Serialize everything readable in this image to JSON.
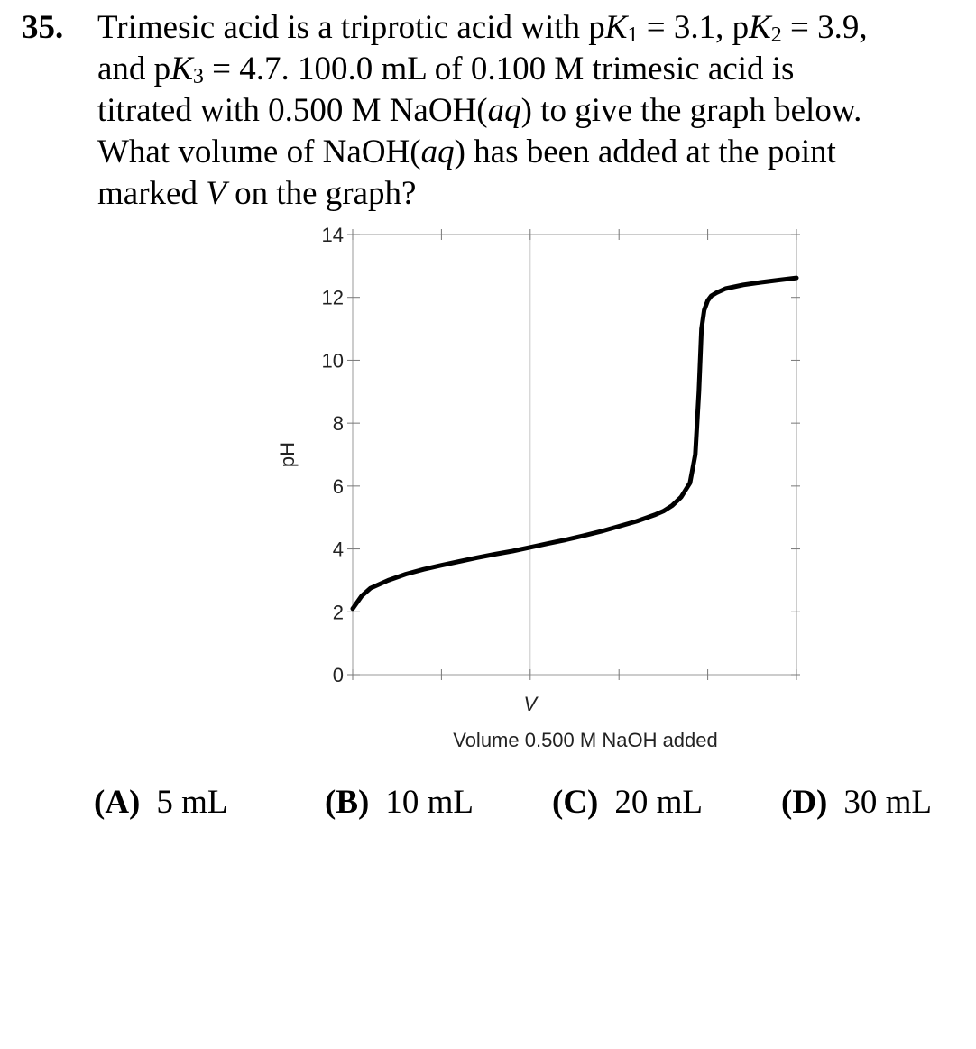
{
  "question": {
    "number": "35.",
    "line1": {
      "a": "Trimesic acid is a triprotic acid with p",
      "k1": "K",
      "k1sub": "1",
      "b": " = 3.1, p",
      "k2": "K",
      "k2sub": "2",
      "c": " = 3.9,"
    },
    "line2": {
      "a": "and p",
      "k3": "K",
      "k3sub": "3",
      "b": " = 4.7.  100.0 mL of 0.100 M trimesic acid is"
    },
    "line3": {
      "a": "titrated with 0.500 M NaOH(",
      "aq": "aq",
      "b": ") to give the graph below."
    },
    "line4": {
      "a": "What volume of NaOH(",
      "aq": "aq",
      "b": ") has been added at the point"
    },
    "line5": {
      "a": "marked ",
      "v": "V",
      "b": " on the graph?"
    }
  },
  "chart_data": {
    "type": "line",
    "title": "",
    "xlabel": "Volume 0.500 M NaOH added",
    "ylabel": "pH",
    "x_marker_label": "V",
    "x_marker_value": 20,
    "xlim": [
      0,
      50
    ],
    "ylim": [
      0,
      14
    ],
    "yticks": [
      0,
      2,
      4,
      6,
      8,
      10,
      12,
      14
    ],
    "xticks": [
      0,
      10,
      20,
      30,
      40,
      50
    ],
    "grid": "vertical line at V",
    "series": [
      {
        "x": [
          0,
          1,
          2,
          4,
          6,
          8,
          10,
          12,
          14,
          16,
          18,
          20,
          22,
          24,
          26,
          28,
          30,
          32,
          34,
          35,
          36,
          37,
          38,
          38.6,
          39,
          39.3,
          39.6,
          40,
          40.4,
          41,
          42,
          44,
          46,
          48,
          50
        ],
        "y": [
          2.1,
          2.5,
          2.75,
          3.0,
          3.2,
          3.35,
          3.48,
          3.6,
          3.72,
          3.83,
          3.93,
          4.05,
          4.17,
          4.29,
          4.42,
          4.56,
          4.72,
          4.88,
          5.08,
          5.2,
          5.38,
          5.65,
          6.1,
          7.0,
          9.0,
          11.0,
          11.6,
          11.9,
          12.05,
          12.15,
          12.28,
          12.4,
          12.48,
          12.55,
          12.62
        ]
      }
    ]
  },
  "answers": [
    {
      "letter": "(A)",
      "text": "5 mL"
    },
    {
      "letter": "(B)",
      "text": "10 mL"
    },
    {
      "letter": "(C)",
      "text": "20 mL"
    },
    {
      "letter": "(D)",
      "text": "30 mL"
    }
  ]
}
